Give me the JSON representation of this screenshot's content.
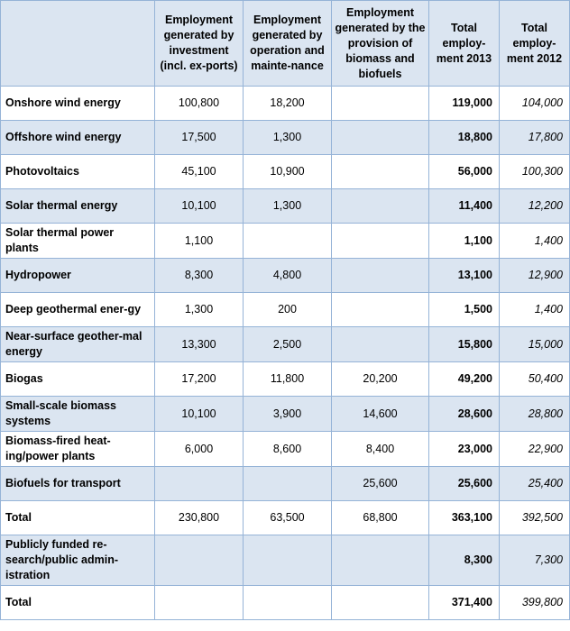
{
  "columns": {
    "investment": "Employment generated by investment (incl. ex-ports)",
    "operation": "Employment generated by operation and mainte-nance",
    "biomass": "Employment generated by the provision of biomass and biofuels",
    "total2013": "Total employ-ment 2013",
    "total2012": "Total employ-ment 2012"
  },
  "rows": [
    {
      "label": "Onshore wind energy",
      "investment": "100,800",
      "operation": "18,200",
      "biomass": "",
      "total2013": "119,000",
      "total2012": "104,000"
    },
    {
      "label": "Offshore wind energy",
      "investment": "17,500",
      "operation": "1,300",
      "biomass": "",
      "total2013": "18,800",
      "total2012": "17,800"
    },
    {
      "label": "Photovoltaics",
      "investment": "45,100",
      "operation": "10,900",
      "biomass": "",
      "total2013": "56,000",
      "total2012": "100,300"
    },
    {
      "label": "Solar thermal energy",
      "investment": "10,100",
      "operation": "1,300",
      "biomass": "",
      "total2013": "11,400",
      "total2012": "12,200"
    },
    {
      "label": "Solar thermal power plants",
      "investment": "1,100",
      "operation": "",
      "biomass": "",
      "total2013": "1,100",
      "total2012": "1,400"
    },
    {
      "label": "Hydropower",
      "investment": "8,300",
      "operation": "4,800",
      "biomass": "",
      "total2013": "13,100",
      "total2012": "12,900"
    },
    {
      "label": "Deep geothermal ener-gy",
      "investment": "1,300",
      "operation": "200",
      "biomass": "",
      "total2013": "1,500",
      "total2012": "1,400"
    },
    {
      "label": "Near-surface geother-mal energy",
      "investment": "13,300",
      "operation": "2,500",
      "biomass": "",
      "total2013": "15,800",
      "total2012": "15,000"
    },
    {
      "label": "Biogas",
      "investment": "17,200",
      "operation": "11,800",
      "biomass": "20,200",
      "total2013": "49,200",
      "total2012": "50,400"
    },
    {
      "label": "Small-scale biomass systems",
      "investment": "10,100",
      "operation": "3,900",
      "biomass": "14,600",
      "total2013": "28,600",
      "total2012": "28,800"
    },
    {
      "label": "Biomass-fired heat-ing/power plants",
      "investment": "6,000",
      "operation": "8,600",
      "biomass": "8,400",
      "total2013": "23,000",
      "total2012": "22,900"
    },
    {
      "label": "Biofuels for transport",
      "investment": "",
      "operation": "",
      "biomass": "25,600",
      "total2013": "25,600",
      "total2012": "25,400"
    },
    {
      "label": "Total",
      "investment": "230,800",
      "operation": "63,500",
      "biomass": "68,800",
      "total2013": "363,100",
      "total2012": "392,500"
    },
    {
      "label": "Publicly funded re-search/public admin-istration",
      "investment": "",
      "operation": "",
      "biomass": "",
      "total2013": "8,300",
      "total2012": "7,300"
    },
    {
      "label": "Total",
      "investment": "",
      "operation": "",
      "biomass": "",
      "total2013": "371,400",
      "total2012": "399,800"
    }
  ]
}
